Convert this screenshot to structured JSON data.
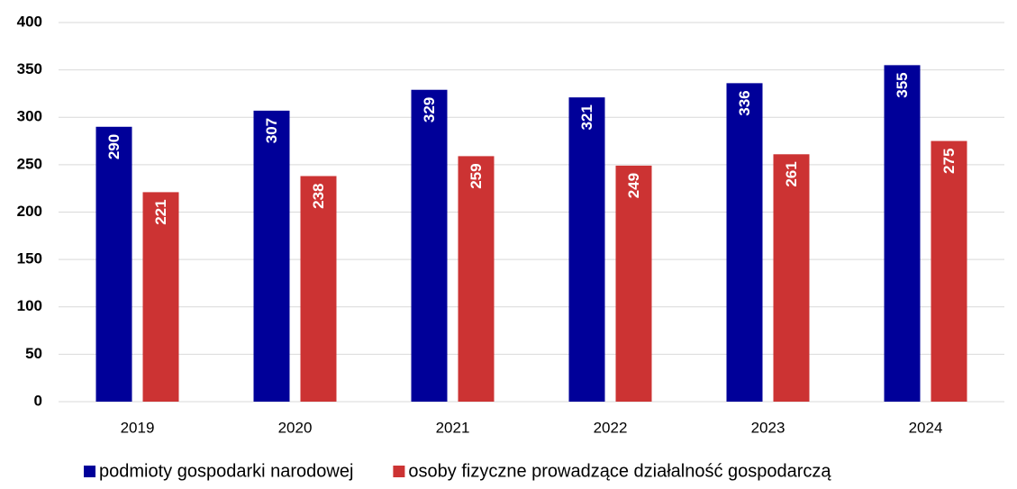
{
  "chart_data": {
    "type": "bar",
    "categories": [
      "2019",
      "2020",
      "2021",
      "2022",
      "2023",
      "2024"
    ],
    "series": [
      {
        "name": "podmioty gospodarki narodowej",
        "color": "#000099",
        "values": [
          290,
          307,
          329,
          321,
          336,
          355
        ]
      },
      {
        "name": "osoby fizyczne prowadzące działalność gospodarczą",
        "color": "#cc3333",
        "values": [
          221,
          238,
          259,
          249,
          261,
          275
        ]
      }
    ],
    "ylim": [
      0,
      400
    ],
    "yticks": [
      0,
      50,
      100,
      150,
      200,
      250,
      300,
      350,
      400
    ],
    "grid": true,
    "legend": "bottom"
  }
}
